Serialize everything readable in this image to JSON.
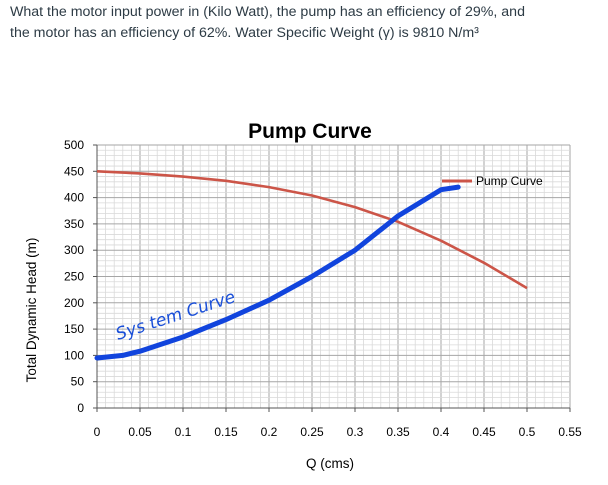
{
  "question": {
    "line1": "What the motor input power in (Kilo Watt), the pump has an efficiency of 29%, and",
    "line2": "the motor has an efficiency of 62%. Water Specific Weight (γ) is 9810 N/m³"
  },
  "colors": {
    "pump_curve": "#cc5548",
    "system_curve": "#1144dd",
    "grid": "#d9d9d9",
    "grid_major": "#a6a6a6"
  },
  "chart_data": {
    "type": "line",
    "title": "Pump Curve",
    "xlabel": "Q (cms)",
    "ylabel": "Total Dynamic Head (m)",
    "xlim": [
      0,
      0.55
    ],
    "ylim": [
      0,
      500
    ],
    "x_ticks": [
      "0",
      "0.05",
      "0.1",
      "0.15",
      "0.2",
      "0.25",
      "0.3",
      "0.35",
      "0.4",
      "0.45",
      "0.5",
      "0.55"
    ],
    "y_ticks": [
      "0",
      "50",
      "100",
      "150",
      "200",
      "250",
      "300",
      "350",
      "400",
      "450",
      "500"
    ],
    "grid": true,
    "legend_position": "top-right",
    "series": [
      {
        "name": "Pump Curve",
        "x": [
          0,
          0.05,
          0.1,
          0.15,
          0.2,
          0.25,
          0.3,
          0.35,
          0.4,
          0.45,
          0.5
        ],
        "y": [
          450,
          446,
          440,
          432,
          420,
          404,
          382,
          354,
          318,
          276,
          228
        ]
      },
      {
        "name": "",
        "x": [
          0,
          0.03,
          0.05,
          0.1,
          0.15,
          0.2,
          0.25,
          0.3,
          0.35,
          0.4,
          0.42
        ],
        "y": [
          95,
          100,
          108,
          135,
          168,
          205,
          250,
          300,
          365,
          415,
          420
        ]
      }
    ],
    "annotation": "Sys tem Curve"
  }
}
